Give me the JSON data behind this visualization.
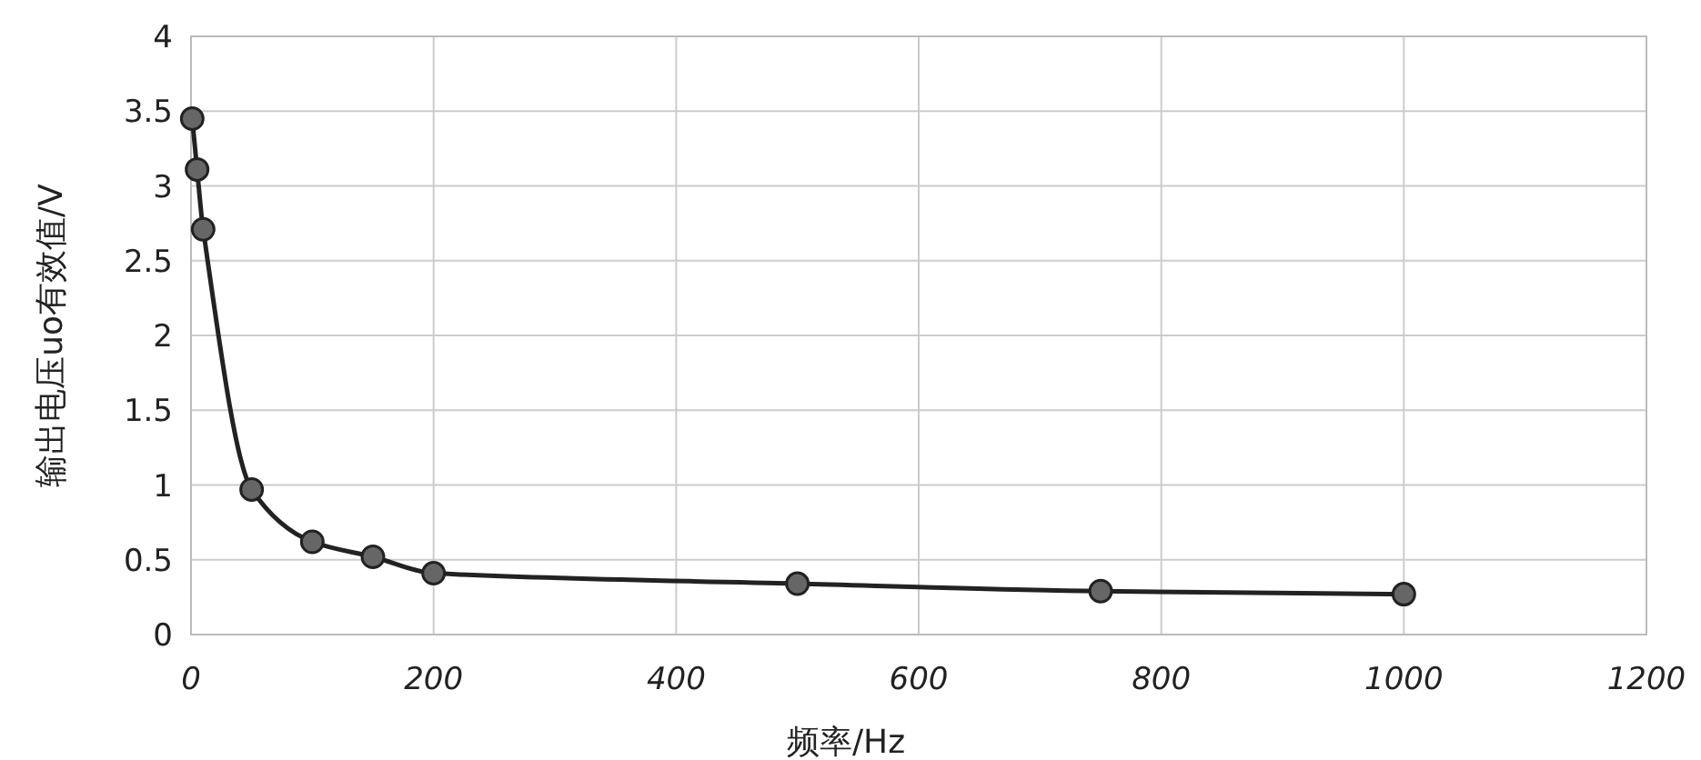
{
  "chart_data": {
    "type": "line",
    "xlabel": "频率/Hz",
    "ylabel": "输出电压uo有效值/V",
    "x": [
      1,
      5,
      10,
      50,
      100,
      150,
      200,
      500,
      750,
      1000
    ],
    "series": [
      {
        "color": "#222222",
        "values": [
          3.45,
          3.11,
          2.71,
          0.97,
          0.62,
          0.52,
          0.41,
          0.34,
          0.29,
          0.27
        ]
      }
    ],
    "xlim": [
      0,
      1200
    ],
    "xticks": [
      0,
      200,
      400,
      600,
      800,
      1000,
      1200
    ],
    "ylim": [
      0,
      4
    ],
    "yticks": [
      0,
      0.5,
      1,
      1.5,
      2,
      2.5,
      3,
      3.5,
      4
    ],
    "grid": true,
    "marker": "circle",
    "line_style": "solid"
  }
}
